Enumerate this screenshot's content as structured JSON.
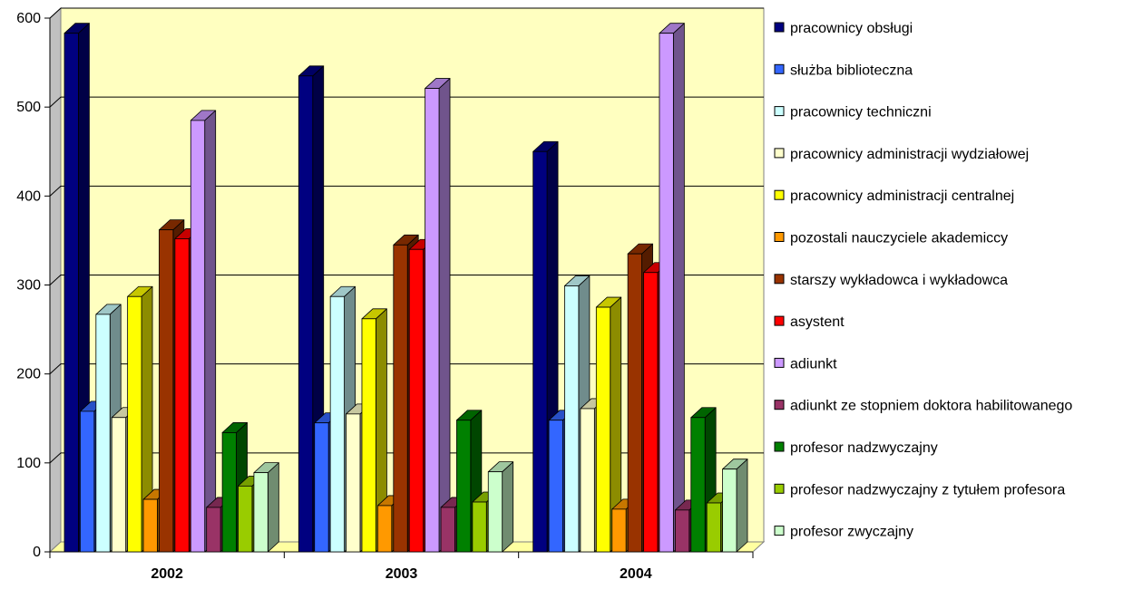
{
  "chart_data": {
    "type": "bar",
    "title": "",
    "xlabel": "",
    "ylabel": "",
    "ylim": [
      0,
      600
    ],
    "yticks": [
      0,
      100,
      200,
      300,
      400,
      500,
      600
    ],
    "grid": true,
    "legend_position": "right",
    "style": "3d-clustered-column",
    "categories": [
      "2002",
      "2003",
      "2004"
    ],
    "series": [
      {
        "name": "pracownicy obsługi",
        "color": "#000080",
        "values": [
          583,
          535,
          450
        ]
      },
      {
        "name": "służba biblioteczna",
        "color": "#3366FF",
        "values": [
          158,
          145,
          148
        ]
      },
      {
        "name": "pracownicy techniczni",
        "color": "#CCFFFF",
        "values": [
          267,
          287,
          299
        ]
      },
      {
        "name": "pracownicy administracji wydziałowej",
        "color": "#FFFFCC",
        "values": [
          151,
          155,
          161
        ]
      },
      {
        "name": "pracownicy administracji centralnej",
        "color": "#FFFF00",
        "values": [
          287,
          262,
          275
        ]
      },
      {
        "name": "pozostali nauczyciele akademiccy",
        "color": "#FF9900",
        "values": [
          59,
          52,
          48
        ]
      },
      {
        "name": "starszy wykładowca i wykładowca",
        "color": "#993300",
        "values": [
          362,
          345,
          335
        ]
      },
      {
        "name": "asystent",
        "color": "#FF0000",
        "values": [
          352,
          340,
          314
        ]
      },
      {
        "name": "adiunkt",
        "color": "#CC99FF",
        "values": [
          485,
          521,
          583
        ]
      },
      {
        "name": "adiunkt ze stopniem doktora habilitowanego",
        "color": "#993366",
        "values": [
          50,
          50,
          47
        ]
      },
      {
        "name": "profesor nadzwyczajny",
        "color": "#008000",
        "values": [
          134,
          148,
          151
        ]
      },
      {
        "name": "profesor nadzwyczajny z tytułem profesora",
        "color": "#99CC00",
        "values": [
          74,
          56,
          55
        ]
      },
      {
        "name": "profesor zwyczajny",
        "color": "#CCFFCC",
        "values": [
          89,
          90,
          93
        ]
      }
    ]
  }
}
